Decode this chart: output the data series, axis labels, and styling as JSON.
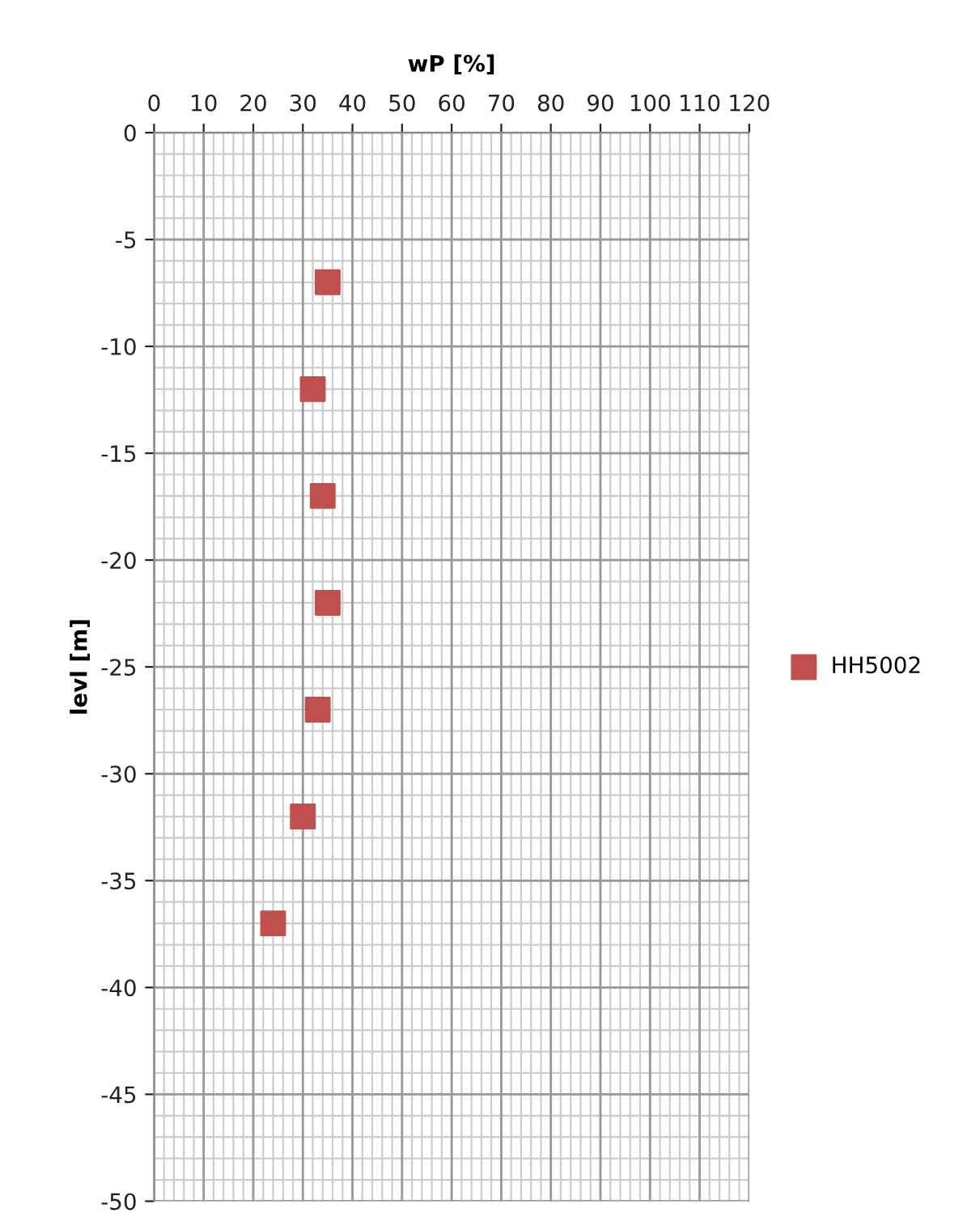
{
  "chart_data": {
    "type": "scatter",
    "xlabel": "wP [%]",
    "ylabel": "levl [m]",
    "xlim": [
      0,
      120
    ],
    "xticks": [
      0,
      10,
      20,
      30,
      40,
      50,
      60,
      70,
      80,
      90,
      100,
      110,
      120
    ],
    "ylim": [
      -50,
      0
    ],
    "yticks": [
      -50,
      -45,
      -40,
      -35,
      -30,
      -25,
      -20,
      -15,
      -10,
      -5,
      0
    ],
    "grid": true,
    "legend": "right",
    "marker": "square",
    "series": [
      {
        "name": "HH5002",
        "color": "#c0504d",
        "x": [
          35,
          32,
          34,
          35,
          33,
          30,
          24
        ],
        "values": [
          -7,
          -12,
          -17,
          -22,
          -27,
          -32,
          -37
        ]
      }
    ]
  }
}
